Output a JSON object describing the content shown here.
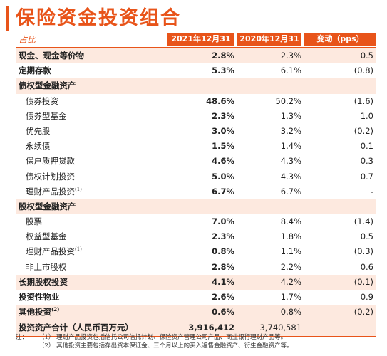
{
  "title": "保险资金投资组合",
  "header": {
    "ratio_label": "占比",
    "col1": "2021年12月31日",
    "col2": "2020年12月31日",
    "col3": "变动（pps）"
  },
  "rows": [
    {
      "label": "现金、现金等价物",
      "v1": "2.8%",
      "v2": "2.3%",
      "v3": "0.5",
      "kind": "bold",
      "shade": true
    },
    {
      "label": "定期存款",
      "v1": "5.3%",
      "v2": "6.1%",
      "v3": "(0.8)",
      "kind": "bold",
      "shade": false
    },
    {
      "label": "债权型金融资产",
      "v1": "",
      "v2": "",
      "v3": "",
      "kind": "cat",
      "shade": true
    },
    {
      "label": "债券投资",
      "v1": "48.6%",
      "v2": "50.2%",
      "v3": "(1.6)",
      "kind": "sub",
      "shade": false
    },
    {
      "label": "债券型基金",
      "v1": "2.3%",
      "v2": "1.3%",
      "v3": "1.0",
      "kind": "sub",
      "shade": false
    },
    {
      "label": "优先股",
      "v1": "3.0%",
      "v2": "3.2%",
      "v3": "(0.2)",
      "kind": "sub",
      "shade": false
    },
    {
      "label": "永续债",
      "v1": "1.5%",
      "v2": "1.4%",
      "v3": "0.1",
      "kind": "sub",
      "shade": false
    },
    {
      "label": "保户质押贷款",
      "v1": "4.6%",
      "v2": "4.3%",
      "v3": "0.3",
      "kind": "sub",
      "shade": false
    },
    {
      "label": "债权计划投资",
      "v1": "5.0%",
      "v2": "4.3%",
      "v3": "0.7",
      "kind": "sub",
      "shade": false
    },
    {
      "label": "理财产品投资",
      "sup": "(1)",
      "v1": "6.7%",
      "v2": "6.7%",
      "v3": "-",
      "kind": "sub",
      "shade": false
    },
    {
      "label": "股权型金融资产",
      "v1": "",
      "v2": "",
      "v3": "",
      "kind": "cat",
      "shade": true
    },
    {
      "label": "股票",
      "v1": "7.0%",
      "v2": "8.4%",
      "v3": "(1.4)",
      "kind": "sub",
      "shade": false
    },
    {
      "label": "权益型基金",
      "v1": "2.3%",
      "v2": "1.8%",
      "v3": "0.5",
      "kind": "sub",
      "shade": false
    },
    {
      "label": "理财产品投资",
      "sup": "(1)",
      "v1": "0.8%",
      "v2": "1.1%",
      "v3": "(0.3)",
      "kind": "sub",
      "shade": false
    },
    {
      "label": "非上市股权",
      "v1": "2.8%",
      "v2": "2.2%",
      "v3": "0.6",
      "kind": "sub",
      "shade": false
    },
    {
      "label": "长期股权投资",
      "v1": "4.1%",
      "v2": "4.2%",
      "v3": "(0.1)",
      "kind": "bold",
      "shade": true
    },
    {
      "label": "投资性物业",
      "v1": "2.6%",
      "v2": "1.7%",
      "v3": "0.9",
      "kind": "bold",
      "shade": false
    },
    {
      "label": "其他投资",
      "sup": "(2)",
      "v1": "0.6%",
      "v2": "0.8%",
      "v3": "(0.2)",
      "kind": "bold",
      "shade": true
    }
  ],
  "total": {
    "label": "投资资产合计（人民币百万元）",
    "v1": "3,916,412",
    "v2": "3,740,581",
    "v3": ""
  },
  "notes": {
    "lead": "注：",
    "n1": "（1）  理财产品投资包括信托公司信托计划、保险资产管理公司产品、商业银行理财产品等。",
    "n2": "（2）  其他投资主要包括存出资本保证金、三个月以上的买入返售金融资产、衍生金融资产等。"
  }
}
